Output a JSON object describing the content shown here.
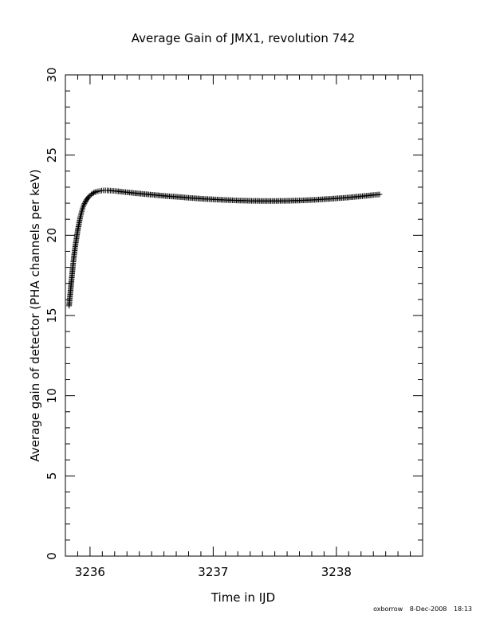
{
  "chart_data": {
    "type": "scatter",
    "title": "Average Gain of JMX1, revolution 742",
    "xlabel": "Time in IJD",
    "ylabel": "Average gain of detector (PHA channels per keV)",
    "xlim": [
      3235.8,
      3238.7
    ],
    "ylim": [
      0,
      30
    ],
    "x_ticks": [
      {
        "value": 3236,
        "label": "3236"
      },
      {
        "value": 3237,
        "label": "3237"
      },
      {
        "value": 3238,
        "label": "3238"
      }
    ],
    "y_ticks": [
      {
        "value": 0,
        "label": "0"
      },
      {
        "value": 5,
        "label": "5"
      },
      {
        "value": 10,
        "label": "10"
      },
      {
        "value": 15,
        "label": "15"
      },
      {
        "value": 20,
        "label": "20"
      },
      {
        "value": 25,
        "label": "25"
      },
      {
        "value": 30,
        "label": "30"
      }
    ],
    "marker": "plus",
    "grid": false,
    "series": [
      {
        "x": [
          3235.83,
          3235.84,
          3235.85,
          3235.86,
          3235.87,
          3235.88,
          3235.89,
          3235.9,
          3235.91,
          3235.92,
          3235.93,
          3235.94,
          3235.95,
          3235.97,
          3235.99,
          3236.01,
          3236.03,
          3236.05,
          3236.08,
          3236.11,
          3236.14,
          3236.18,
          3236.22,
          3236.3,
          3236.4,
          3236.5,
          3236.6,
          3236.7,
          3236.8,
          3236.9,
          3237.0,
          3237.1,
          3237.2,
          3237.3,
          3237.4,
          3237.5,
          3237.6,
          3237.7,
          3237.8,
          3237.9,
          3238.0,
          3238.1,
          3238.2,
          3238.3,
          3238.35
        ],
        "y": [
          15.6,
          16.4,
          17.2,
          18.0,
          18.7,
          19.3,
          19.8,
          20.3,
          20.7,
          21.1,
          21.4,
          21.7,
          21.9,
          22.2,
          22.4,
          22.55,
          22.65,
          22.72,
          22.77,
          22.8,
          22.8,
          22.78,
          22.75,
          22.68,
          22.6,
          22.53,
          22.46,
          22.4,
          22.34,
          22.28,
          22.24,
          22.2,
          22.17,
          22.15,
          22.14,
          22.14,
          22.15,
          22.17,
          22.2,
          22.25,
          22.3,
          22.36,
          22.43,
          22.51,
          22.55
        ]
      }
    ]
  },
  "footer": {
    "user": "oxborrow",
    "date": "8-Dec-2008",
    "time": "18:13"
  }
}
